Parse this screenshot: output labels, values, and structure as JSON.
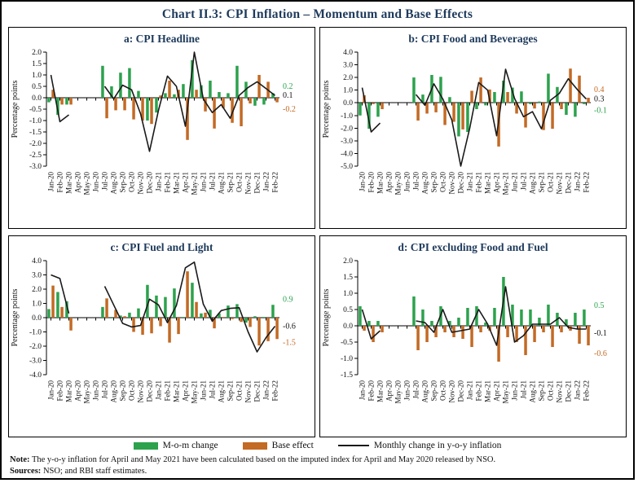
{
  "title": "Chart II.3: CPI Inflation – Momentum and Base Effects",
  "legend": {
    "mom": "M-o-m change",
    "base": "Base effect",
    "line": "Monthly change in y-o-y inflation"
  },
  "notes": {
    "note_label": "Note:",
    "note_text": "The y-o-y inflation for April and May 2021 have been calculated based on the imputed index for April and May 2020 released by NSO.",
    "sources_label": "Sources:",
    "sources_text": "NSO; and RBI staff estimates."
  },
  "chart_data": {
    "type": "bar",
    "subtype": "grouped bars with overlaid line, 2x2 subplot figure",
    "categories": [
      "Jan-20",
      "Feb-20",
      "Mar-20",
      "Apr-20",
      "May-20",
      "Jun-20",
      "Jul-20",
      "Aug-20",
      "Sep-20",
      "Oct-20",
      "Nov-20",
      "Dec-20",
      "Jan-21",
      "Feb-21",
      "Mar-21",
      "Apr-21",
      "May-21",
      "Jun-21",
      "Jul-21",
      "Aug-21",
      "Sep-21",
      "Oct-21",
      "Nov-21",
      "Dec-21",
      "Jan-22",
      "Feb-22"
    ],
    "colors": {
      "green": "#2ca24d",
      "orange": "#c36a24",
      "black": "#1a1a1a",
      "heading": "#1e3a5c"
    },
    "legend_position": "bottom",
    "grid": false,
    "charts": [
      {
        "title": "a: CPI Headline",
        "ylabel": "Percentage points",
        "ylim": [
          -3.0,
          2.0
        ],
        "ytick_step": 0.5,
        "series": [
          {
            "name": "M-o-m change",
            "type": "bar",
            "color": "green",
            "values": [
              -0.2,
              -0.75,
              -0.3,
              null,
              null,
              null,
              1.4,
              0.5,
              1.1,
              1.3,
              0.3,
              -1.0,
              -0.65,
              0.2,
              0.15,
              0.6,
              1.65,
              0.55,
              0.75,
              0.25,
              0.2,
              1.4,
              0.7,
              -0.35,
              -0.3,
              0.2
            ]
          },
          {
            "name": "Base effect",
            "type": "bar",
            "color": "orange",
            "values": [
              0.35,
              -0.3,
              -0.3,
              null,
              null,
              null,
              -0.9,
              -0.55,
              -0.55,
              -0.95,
              -1.0,
              -1.15,
              0.1,
              0.75,
              0.35,
              -1.85,
              0.35,
              -0.6,
              -1.35,
              -0.45,
              -1.1,
              -1.25,
              -0.25,
              1.0,
              0.7,
              -0.2
            ]
          },
          {
            "name": "Monthly change in y-o-y inflation",
            "type": "line",
            "color": "black",
            "values": [
              1.0,
              -1.05,
              -0.75,
              null,
              null,
              null,
              0.5,
              -0.05,
              0.55,
              0.35,
              -0.7,
              -2.35,
              -0.55,
              0.95,
              0.5,
              -1.25,
              2.0,
              -0.05,
              -0.65,
              -0.3,
              -0.9,
              0.1,
              0.45,
              0.7,
              0.4,
              0.1
            ]
          }
        ],
        "end_labels": [
          {
            "text": "0.2",
            "color": "green",
            "y": 0.5
          },
          {
            "text": "0.1",
            "color": "black",
            "y": 0.1
          },
          {
            "text": "-0.2",
            "color": "orange",
            "y": -0.5
          }
        ]
      },
      {
        "title": "b: CPI Food and Beverages",
        "ylabel": "Percentage points",
        "ylim": [
          -5.0,
          4.0
        ],
        "ytick_step": 1.0,
        "series": [
          {
            "name": "M-o-m change",
            "type": "bar",
            "color": "green",
            "values": [
              -1.0,
              -2.05,
              -1.1,
              null,
              null,
              null,
              2.0,
              0.65,
              2.2,
              2.05,
              0.45,
              -2.65,
              -2.3,
              -0.5,
              -0.2,
              0.85,
              1.75,
              1.2,
              0.9,
              -0.1,
              0.1,
              2.3,
              1.25,
              -0.95,
              -1.1,
              -0.1
            ]
          },
          {
            "name": "Base effect",
            "type": "bar",
            "color": "orange",
            "values": [
              0.6,
              -0.1,
              -0.5,
              null,
              null,
              null,
              -1.4,
              -0.85,
              -0.75,
              -1.75,
              -1.5,
              -2.1,
              0.95,
              2.0,
              1.05,
              -3.45,
              0.85,
              -0.85,
              -1.95,
              -0.45,
              -2.15,
              -2.05,
              -0.5,
              2.7,
              2.15,
              0.4
            ]
          },
          {
            "name": "Monthly change in y-o-y inflation",
            "type": "line",
            "color": "black",
            "values": [
              1.2,
              -2.3,
              -1.6,
              null,
              null,
              null,
              0.65,
              -0.2,
              1.5,
              0.3,
              -1.35,
              -5.0,
              -2.0,
              1.6,
              1.0,
              -2.6,
              2.65,
              0.35,
              -1.1,
              -0.7,
              -2.05,
              0.2,
              0.75,
              1.9,
              1.05,
              0.3
            ]
          }
        ],
        "end_labels": [
          {
            "text": "0.4",
            "color": "orange",
            "y": 1.05
          },
          {
            "text": "0.3",
            "color": "black",
            "y": 0.3
          },
          {
            "text": "-0.1",
            "color": "green",
            "y": -0.6
          }
        ]
      },
      {
        "title": "c: CPI Fuel and Light",
        "ylabel": "Percentage points",
        "ylim": [
          -4.0,
          4.0
        ],
        "ytick_step": 1.0,
        "series": [
          {
            "name": "M-o-m change",
            "type": "bar",
            "color": "green",
            "values": [
              0.6,
              1.8,
              1.15,
              null,
              null,
              null,
              0.75,
              -0.05,
              0.15,
              0.35,
              0.65,
              2.3,
              1.55,
              1.45,
              2.05,
              0.05,
              2.45,
              0.3,
              0.55,
              0.3,
              0.85,
              0.95,
              -0.35,
              0.1,
              0.05,
              0.9
            ]
          },
          {
            "name": "Base effect",
            "type": "bar",
            "color": "orange",
            "values": [
              2.25,
              0.75,
              -0.9,
              null,
              null,
              null,
              1.35,
              0.55,
              0.1,
              -1.0,
              -1.2,
              -1.1,
              -0.6,
              -1.75,
              -1.15,
              3.25,
              1.1,
              0.35,
              -0.75,
              0.05,
              -0.1,
              -0.3,
              -0.65,
              -1.95,
              -1.65,
              -1.5
            ]
          },
          {
            "name": "Monthly change in y-o-y inflation",
            "type": "line",
            "color": "black",
            "values": [
              3.0,
              2.75,
              0.3,
              null,
              null,
              null,
              2.2,
              0.9,
              -0.4,
              -0.65,
              -0.55,
              1.3,
              0.9,
              -0.35,
              0.85,
              3.5,
              3.9,
              0.95,
              -0.25,
              0.5,
              0.65,
              0.7,
              -1.0,
              -2.4,
              -1.4,
              -0.6
            ]
          }
        ],
        "end_labels": [
          {
            "text": "0.9",
            "color": "green",
            "y": 1.3
          },
          {
            "text": "-0.6",
            "color": "black",
            "y": -0.6
          },
          {
            "text": "-1.5",
            "color": "orange",
            "y": -1.75
          }
        ]
      },
      {
        "title": "d: CPI excluding Food and Fuel",
        "ylabel": "Percentage points",
        "ylim": [
          -1.5,
          2.0
        ],
        "ytick_step": 0.5,
        "series": [
          {
            "name": "M-o-m change",
            "type": "bar",
            "color": "green",
            "values": [
              0.6,
              0.15,
              0.15,
              null,
              null,
              null,
              0.9,
              0.5,
              0.15,
              0.6,
              0.15,
              0.25,
              0.55,
              0.6,
              0.1,
              0.55,
              1.5,
              0.65,
              0.5,
              0.5,
              0.25,
              0.65,
              0.4,
              0.2,
              0.4,
              0.5
            ]
          },
          {
            "name": "Base effect",
            "type": "bar",
            "color": "orange",
            "values": [
              -0.15,
              -0.5,
              -0.2,
              null,
              null,
              null,
              -0.75,
              -0.5,
              -0.35,
              -0.2,
              -0.35,
              -0.4,
              -0.65,
              -0.2,
              -0.15,
              -1.1,
              -0.35,
              -0.5,
              -0.9,
              -0.5,
              -0.2,
              -0.65,
              -0.2,
              -0.15,
              -0.55,
              -0.6
            ]
          },
          {
            "name": "Monthly change in y-o-y inflation",
            "type": "line",
            "color": "black",
            "values": [
              0.5,
              -0.4,
              -0.15,
              null,
              null,
              null,
              0.15,
              0.1,
              -0.2,
              0.5,
              -0.2,
              -0.15,
              -0.1,
              0.5,
              0.05,
              -0.6,
              1.2,
              -0.5,
              -0.3,
              0.05,
              0.05,
              0.05,
              0.25,
              -0.05,
              -0.1,
              -0.1
            ]
          }
        ],
        "end_labels": [
          {
            "text": "0.5",
            "color": "green",
            "y": 0.62
          },
          {
            "text": "-0.1",
            "color": "black",
            "y": -0.22
          },
          {
            "text": "-0.6",
            "color": "orange",
            "y": -0.85
          }
        ]
      }
    ]
  }
}
